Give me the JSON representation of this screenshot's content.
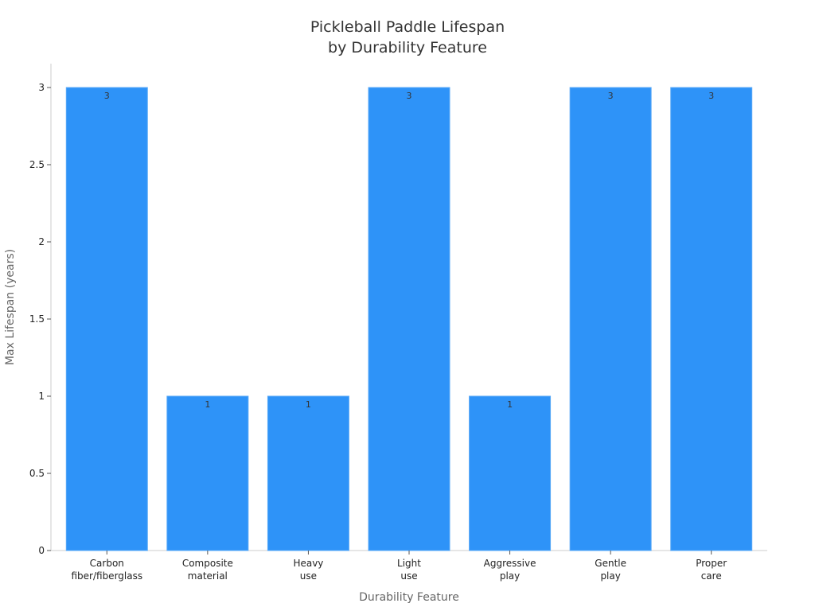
{
  "chart_data": {
    "type": "bar",
    "title": [
      "Pickleball Paddle Lifespan",
      "by Durability Feature"
    ],
    "xlabel": "Durability Feature",
    "ylabel": "Max Lifespan (years)",
    "categories": [
      [
        "Carbon",
        "fiber/fiberglass"
      ],
      [
        "Composite",
        "material"
      ],
      [
        "Heavy",
        "use"
      ],
      [
        "Light",
        "use"
      ],
      [
        "Aggressive",
        "play"
      ],
      [
        "Gentle",
        "play"
      ],
      [
        "Proper",
        "care"
      ]
    ],
    "values": [
      3,
      1,
      1,
      3,
      1,
      3,
      3
    ],
    "data_labels": [
      "3",
      "1",
      "1",
      "3",
      "1",
      "3",
      "3"
    ],
    "ylim": [
      0,
      3.15
    ],
    "yticks": [
      0,
      0.5,
      1,
      1.5,
      2,
      2.5,
      3
    ],
    "ytick_labels": [
      "0",
      "0.5",
      "1",
      "1.5",
      "2",
      "2.5",
      "3"
    ],
    "bar_color": "#2e93f8",
    "grid": false,
    "legend": "none"
  }
}
